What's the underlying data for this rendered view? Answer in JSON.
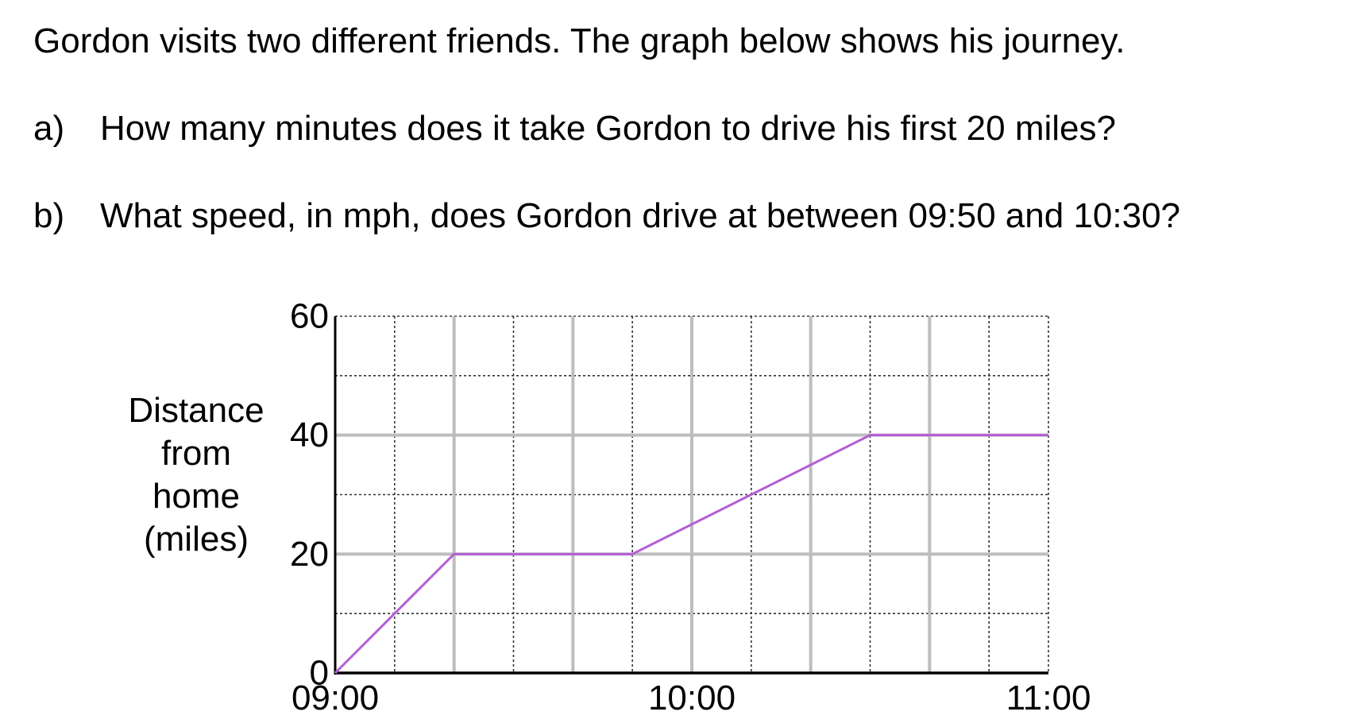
{
  "intro": "Gordon visits two different friends. The graph below shows his journey.",
  "questions": [
    {
      "label": "a)",
      "text": "How many minutes does it take Gordon to drive his first 20 miles?"
    },
    {
      "label": "b)",
      "text": "What speed, in mph, does Gordon drive at between 09:50 and 10:30?"
    }
  ],
  "chart_data": {
    "type": "line",
    "title": "",
    "xlabel": "",
    "ylabel": "Distance from home (miles)",
    "ylabel_lines": [
      "Distance",
      "from",
      "home",
      "(miles)"
    ],
    "x_unit": "minutes after 09:00",
    "xlim": [
      0,
      120
    ],
    "ylim": [
      0,
      60
    ],
    "x_ticks": [
      {
        "value": 0,
        "label": "09:00"
      },
      {
        "value": 60,
        "label": "10:00"
      },
      {
        "value": 120,
        "label": "11:00"
      }
    ],
    "y_ticks": [
      {
        "value": 0,
        "label": "0"
      },
      {
        "value": 20,
        "label": "20"
      },
      {
        "value": 40,
        "label": "40"
      },
      {
        "value": 60,
        "label": "60"
      }
    ],
    "grid": {
      "major_x_every_minutes": 20,
      "minor_x_every_minutes": 10,
      "major_y_every": 20,
      "minor_y_every": 10,
      "major_style": "solid grey",
      "minor_style": "dotted"
    },
    "series": [
      {
        "color": "#b35fd4",
        "points": [
          {
            "x": 0,
            "y": 0
          },
          {
            "x": 20,
            "y": 20
          },
          {
            "x": 50,
            "y": 20
          },
          {
            "x": 90,
            "y": 40
          },
          {
            "x": 120,
            "y": 40
          }
        ]
      }
    ],
    "colors": {
      "line": "#b35fd4",
      "major_grid": "#bdbdbd",
      "minor_grid": "#333333",
      "axis": "#000000"
    }
  }
}
